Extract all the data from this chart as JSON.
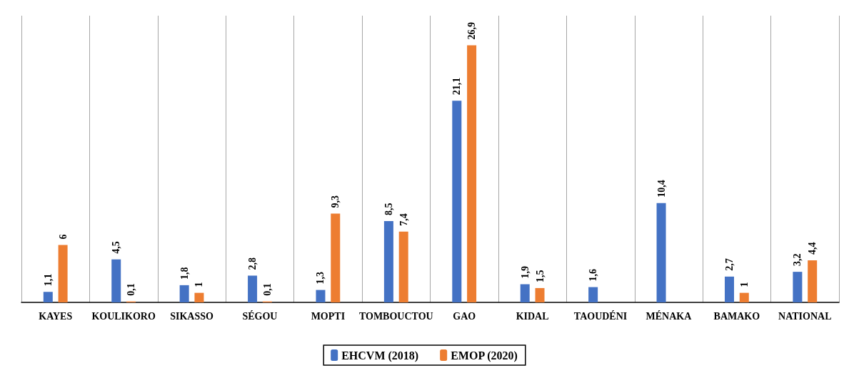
{
  "chart_data": {
    "type": "bar",
    "categories": [
      "KAYES",
      "KOULIKORO",
      "SIKASSO",
      "SÉGOU",
      "MOPTI",
      "TOMBOUCTOU",
      "GAO",
      "KIDAL",
      "TAOUDÉNI",
      "MÉNAKA",
      "BAMAKO",
      "NATIONAL"
    ],
    "series": [
      {
        "name": "EHCVM (2018)",
        "color": "#4472c4",
        "values": [
          1.1,
          4.5,
          1.8,
          2.8,
          1.3,
          8.5,
          21.1,
          1.9,
          1.6,
          10.4,
          2.7,
          3.2
        ],
        "value_labels": [
          "1,1",
          "4,5",
          "1,8",
          "2,8",
          "1,3",
          "8,5",
          "21,1",
          "1,9",
          "1,6",
          "10,4",
          "2,7",
          "3,2"
        ]
      },
      {
        "name": "EMOP (2020)",
        "color": "#ed7d31",
        "values": [
          6,
          0.1,
          1,
          0.1,
          9.3,
          7.4,
          26.9,
          1.5,
          null,
          null,
          1,
          4.4
        ],
        "value_labels": [
          "6",
          "0,1",
          "1",
          "0,1",
          "9,3",
          "7,4",
          "26,9",
          "1,5",
          null,
          null,
          "1",
          "4,4"
        ]
      }
    ],
    "grid": "x",
    "legend": "bottom"
  }
}
